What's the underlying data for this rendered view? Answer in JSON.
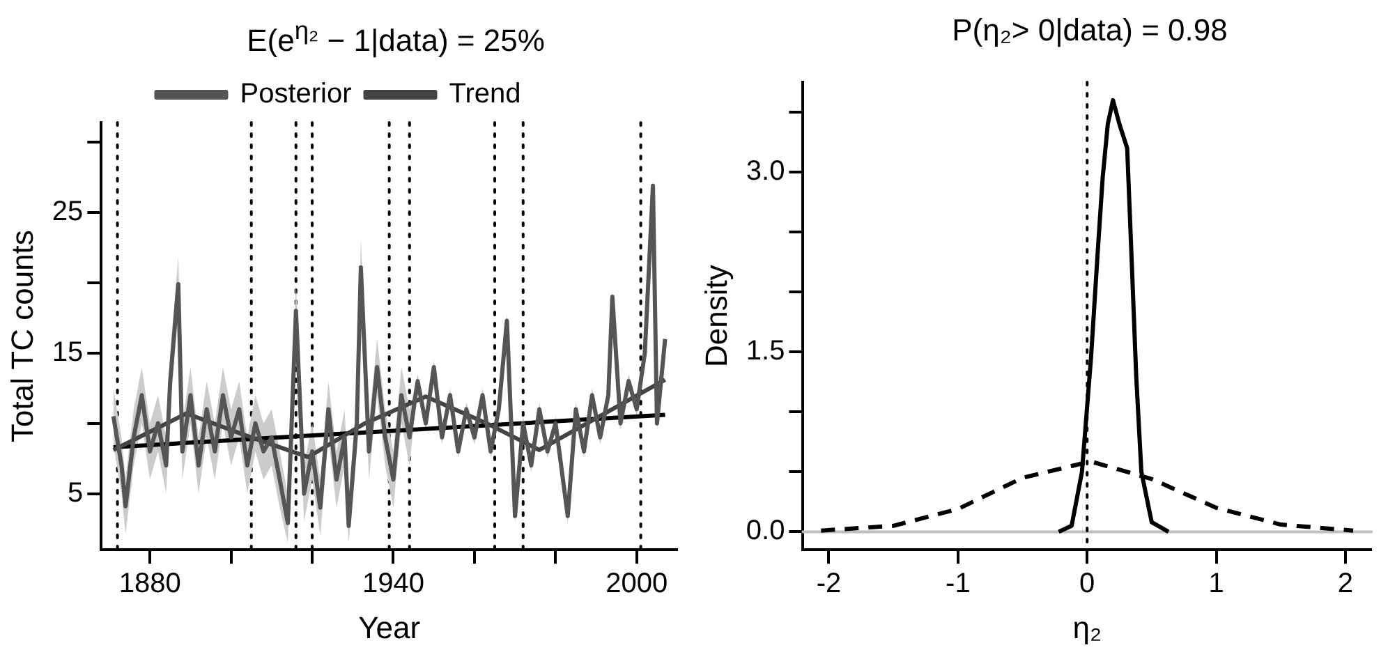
{
  "chart_data": [
    {
      "type": "line",
      "title": "E(e$^{η₂}$ − 1|data) = 25%",
      "xlabel": "Year",
      "ylabel": "Total TC counts",
      "legend": "top",
      "grid": false,
      "xlim": [
        1868,
        2010
      ],
      "xticks": [
        1880,
        {
          "value": 1900,
          "label": null
        },
        {
          "value": 1920,
          "label": null
        },
        1940,
        {
          "value": 1960,
          "label": null
        },
        {
          "value": 1980,
          "label": null
        },
        2000
      ],
      "ylim": [
        1,
        31.4
      ],
      "yticks": [
        5,
        {
          "value": 10,
          "label": null
        },
        15,
        {
          "value": 20,
          "label": null
        },
        25,
        {
          "value": 30,
          "label": null
        }
      ],
      "series": [
        {
          "name": "Posterior",
          "color": "#555555",
          "x": [
            1871,
            1873,
            1874,
            1876,
            1878,
            1880,
            1882,
            1884,
            1885,
            1887,
            1888,
            1890,
            1892,
            1894,
            1896,
            1898,
            1900,
            1902,
            1904,
            1906,
            1908,
            1910,
            1912,
            1914,
            1916,
            1918,
            1920,
            1922,
            1924,
            1926,
            1928,
            1929,
            1931,
            1932,
            1934,
            1936,
            1938,
            1940,
            1942,
            1944,
            1946,
            1948,
            1950,
            1952,
            1954,
            1956,
            1958,
            1960,
            1962,
            1964,
            1966,
            1968,
            1970,
            1972,
            1974,
            1976,
            1978,
            1980,
            1983,
            1985,
            1987,
            1989,
            1991,
            1993,
            1994,
            1996,
            1998,
            2000,
            2002,
            2004,
            2005,
            2007
          ],
          "values": [
            10.5,
            7,
            4.1,
            9,
            12,
            8,
            10,
            7,
            13,
            19.9,
            8,
            12,
            7,
            11,
            8,
            12,
            9,
            11,
            7,
            10,
            8,
            9,
            6,
            2.9,
            18,
            5,
            8,
            4,
            11,
            6,
            9,
            2.7,
            10,
            21.1,
            8,
            14,
            9,
            6,
            12,
            9,
            13,
            10,
            14,
            9,
            12,
            8,
            11,
            9,
            12,
            8,
            11,
            17.3,
            3.4,
            10,
            7,
            11,
            8,
            10,
            3.4,
            11,
            8,
            12,
            9,
            12,
            19,
            10,
            13,
            11,
            15,
            26.9,
            10,
            16
          ],
          "lower": [
            8.5,
            5,
            2.1,
            7,
            10,
            6,
            8,
            5,
            11,
            17.9,
            6,
            10,
            5,
            9,
            6,
            10,
            7,
            9,
            5,
            8,
            6,
            7,
            4,
            1.5,
            16,
            3,
            6,
            2,
            9,
            4,
            7,
            1.5,
            8,
            19.1,
            6,
            12,
            7,
            4,
            10,
            7,
            12.5,
            9.5,
            13.5,
            8.5,
            11.5,
            7.5,
            10.5,
            8.5,
            11.5,
            7.5,
            10.5,
            16.8,
            2.9,
            9.5,
            6.5,
            10.5,
            7.5,
            9.5,
            2.9,
            10.5,
            7.5,
            11.5,
            8.5,
            11.5,
            18.5,
            9.5,
            12.5,
            10.5,
            14.5,
            26.4,
            9.5,
            15.5
          ],
          "upper": [
            12.5,
            9,
            6.1,
            11,
            14,
            10,
            12,
            9,
            15,
            21.9,
            10,
            14,
            9,
            13,
            10,
            14,
            11,
            13,
            9,
            12,
            10,
            11,
            8,
            4.9,
            20,
            7,
            10,
            6,
            13,
            8,
            11,
            4.7,
            12,
            23.1,
            10,
            16,
            11,
            8,
            14,
            11,
            13.5,
            10.5,
            14.5,
            9.5,
            12.5,
            8.5,
            11.5,
            9.5,
            12.5,
            8.5,
            11.5,
            17.8,
            3.9,
            10.5,
            7.5,
            11.5,
            8.5,
            10.5,
            3.9,
            11.5,
            8.5,
            12.5,
            9.5,
            12.5,
            19.5,
            10.5,
            13.5,
            11.5,
            15.5,
            27.4,
            10.5,
            16.5
          ]
        },
        {
          "name": "Trend",
          "color": "#444444",
          "x": [
            1871,
            1889,
            1904,
            1919,
            1933,
            1948,
            1963,
            1976,
            1989,
            2007
          ],
          "values": [
            8.1,
            10.7,
            9.1,
            7.6,
            10,
            11.9,
            10,
            8.1,
            10.2,
            13.1
          ]
        },
        {
          "color": "#000000",
          "x": [
            1871,
            2007
          ],
          "values": [
            8.3,
            10.6
          ]
        }
      ],
      "ref_lines": [
        {
          "axis": "x",
          "value": 1872,
          "line_style": "dotted",
          "color": "#000000"
        },
        {
          "axis": "x",
          "value": 1905,
          "line_style": "dotted",
          "color": "#000000"
        },
        {
          "axis": "x",
          "value": 1916,
          "line_style": "dotted",
          "color": "#000000"
        },
        {
          "axis": "x",
          "value": 1920,
          "line_style": "dotted",
          "color": "#000000"
        },
        {
          "axis": "x",
          "value": 1939,
          "line_style": "dotted",
          "color": "#000000"
        },
        {
          "axis": "x",
          "value": 1944,
          "line_style": "dotted",
          "color": "#000000"
        },
        {
          "axis": "x",
          "value": 1965,
          "line_style": "dotted",
          "color": "#000000"
        },
        {
          "axis": "x",
          "value": 1972,
          "line_style": "dotted",
          "color": "#000000"
        },
        {
          "axis": "x",
          "value": 2001,
          "line_style": "dotted",
          "color": "#000000"
        }
      ]
    },
    {
      "type": "line",
      "title": "P(η₂> 0|data) = 0.98",
      "xlabel": "η₂",
      "ylabel": "Density",
      "grid": false,
      "xlim": [
        -2.2,
        2.2
      ],
      "xticks": [
        -2,
        -1,
        0,
        1,
        2
      ],
      "ylim": [
        -0.15,
        3.75
      ],
      "yticks": [
        {
          "value": 0,
          "label": "0.0"
        },
        {
          "value": 0.5,
          "label": null
        },
        {
          "value": 1,
          "label": null
        },
        {
          "value": 1.5,
          "label": "1.5"
        },
        {
          "value": 2,
          "label": null
        },
        {
          "value": 2.5,
          "label": null
        },
        {
          "value": 3,
          "label": "3.0"
        },
        {
          "value": 3.5,
          "label": null
        }
      ],
      "series": [
        {
          "color": "#000000",
          "line_style": "solid",
          "x": [
            -0.22,
            -0.12,
            -0.04,
            0.03,
            0.08,
            0.12,
            0.16,
            0.2,
            0.25,
            0.31,
            0.34,
            0.38,
            0.42,
            0.5,
            0.63
          ],
          "values": [
            0,
            0.05,
            0.5,
            1.45,
            2.3,
            2.95,
            3.4,
            3.6,
            3.4,
            3.2,
            2.4,
            1.3,
            0.5,
            0.08,
            0
          ]
        },
        {
          "color": "#000000",
          "line_style": "dashed",
          "x": [
            -2.06,
            -1.5,
            -1,
            -0.5,
            0,
            0.05,
            0.5,
            1,
            1.5,
            2.06
          ],
          "values": [
            0.01,
            0.05,
            0.19,
            0.45,
            0.58,
            0.58,
            0.44,
            0.2,
            0.06,
            0.01
          ]
        }
      ],
      "ref_lines": [
        {
          "axis": "y",
          "value": 0,
          "color": "#bebebe",
          "line_style": "solid"
        },
        {
          "axis": "x",
          "value": 0,
          "color": "#000000",
          "line_style": "dotted"
        }
      ]
    }
  ]
}
